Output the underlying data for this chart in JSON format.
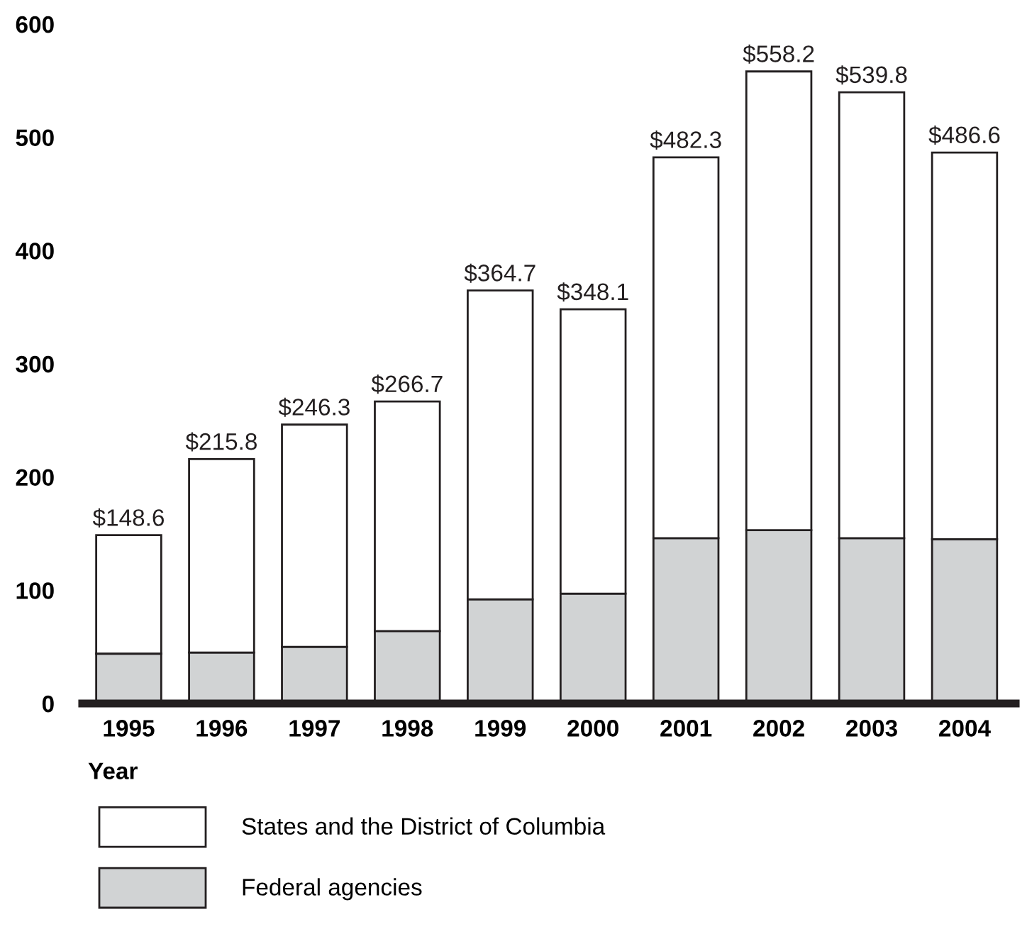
{
  "chart_data": {
    "type": "bar",
    "stacked": true,
    "xlabel": "Year",
    "categories": [
      "1995",
      "1996",
      "1997",
      "1998",
      "1999",
      "2000",
      "2001",
      "2002",
      "2003",
      "2004"
    ],
    "series": [
      {
        "name": "Federal agencies",
        "color": "#d1d3d4",
        "values": [
          44,
          45,
          50,
          64,
          92,
          97,
          146,
          153,
          146,
          145
        ]
      },
      {
        "name": "States and the District of Columbia",
        "color": "#ffffff",
        "values": [
          104.6,
          170.8,
          196.3,
          202.7,
          272.7,
          251.1,
          336.3,
          405.2,
          393.8,
          341.6
        ]
      }
    ],
    "totals": [
      "$148.6",
      "$215.8",
      "$246.3",
      "$266.7",
      "$364.7",
      "$348.1",
      "$482.3",
      "$558.2",
      "$539.8",
      "$486.6"
    ],
    "ylim": [
      0,
      600
    ],
    "yticks": [
      0,
      100,
      200,
      300,
      400,
      500,
      600
    ],
    "grid": false,
    "legend": "bottom"
  }
}
